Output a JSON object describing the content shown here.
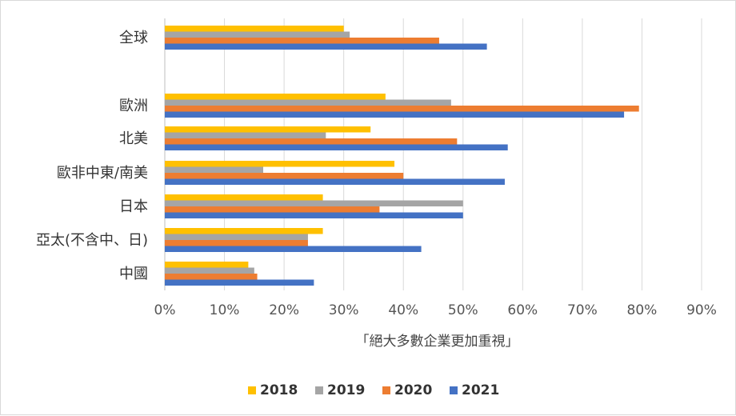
{
  "chart_data": {
    "type": "bar",
    "orientation": "horizontal",
    "categories": [
      "全球",
      "歐洲",
      "北美",
      "歐非中東/南美",
      "日本",
      "亞太(不含中、日)",
      "中國"
    ],
    "series": [
      {
        "name": "2018",
        "color": "#FFC000",
        "values": [
          30,
          37,
          34.5,
          38.5,
          26.5,
          26.5,
          14
        ]
      },
      {
        "name": "2019",
        "color": "#A5A5A5",
        "values": [
          31,
          48,
          27,
          16.5,
          50,
          24,
          15
        ]
      },
      {
        "name": "2020",
        "color": "#ED7D31",
        "values": [
          46,
          79.5,
          49,
          40,
          36,
          24,
          15.5
        ]
      },
      {
        "name": "2021",
        "color": "#4472C4",
        "values": [
          54,
          77,
          57.5,
          57,
          50,
          43,
          25
        ]
      }
    ],
    "xlim": [
      0,
      90
    ],
    "xticks": [
      "0%",
      "10%",
      "20%",
      "30%",
      "40%",
      "50%",
      "60%",
      "70%",
      "80%",
      "90%"
    ],
    "xlabel": "「絕大多數企業更加重視」",
    "legend_position": "bottom",
    "grid": true
  }
}
